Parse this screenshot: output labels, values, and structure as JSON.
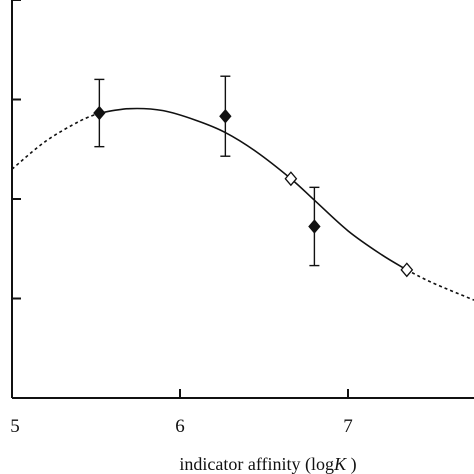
{
  "chart_data": {
    "type": "scatter",
    "title": "",
    "xlabel_main": "indicator affinity (log",
    "xlabel_italic": "K",
    "xlabel_close": " )",
    "ylabel": "",
    "xlim": [
      5,
      7.75
    ],
    "x_ticks": [
      5,
      6,
      7
    ],
    "x_tick_labels": [
      "5",
      "6",
      "7"
    ],
    "y_tick_count": 4,
    "grid": false,
    "legend": "none",
    "series": [
      {
        "marker": "filled-diamond",
        "points": [
          {
            "x": 5.52,
            "y": 0.716,
            "err_low": 0.0845,
            "err_high": 0.0845
          },
          {
            "x": 6.27,
            "y": 0.708,
            "err_low": 0.1005,
            "err_high": 0.1005
          },
          {
            "x": 6.8,
            "y": 0.431,
            "err_low": 0.0983,
            "err_high": 0.0983
          }
        ]
      },
      {
        "marker": "open-diamond",
        "points": [
          {
            "x": 6.66,
            "y": 0.551
          },
          {
            "x": 7.35,
            "y": 0.322
          }
        ]
      }
    ],
    "fit_curve": {
      "style_solid_range": [
        5.52,
        7.35
      ],
      "style_dashed_ranges": [
        [
          5.0,
          5.52
        ],
        [
          7.35,
          7.75
        ]
      ],
      "points": [
        [
          5.0,
          0.575
        ],
        [
          5.2,
          0.645
        ],
        [
          5.4,
          0.695
        ],
        [
          5.52,
          0.716
        ],
        [
          5.7,
          0.727
        ],
        [
          5.9,
          0.722
        ],
        [
          6.1,
          0.697
        ],
        [
          6.27,
          0.667
        ],
        [
          6.45,
          0.62
        ],
        [
          6.66,
          0.551
        ],
        [
          6.8,
          0.497
        ],
        [
          7.0,
          0.42
        ],
        [
          7.2,
          0.36
        ],
        [
          7.35,
          0.322
        ],
        [
          7.5,
          0.29
        ],
        [
          7.75,
          0.246
        ]
      ]
    }
  }
}
